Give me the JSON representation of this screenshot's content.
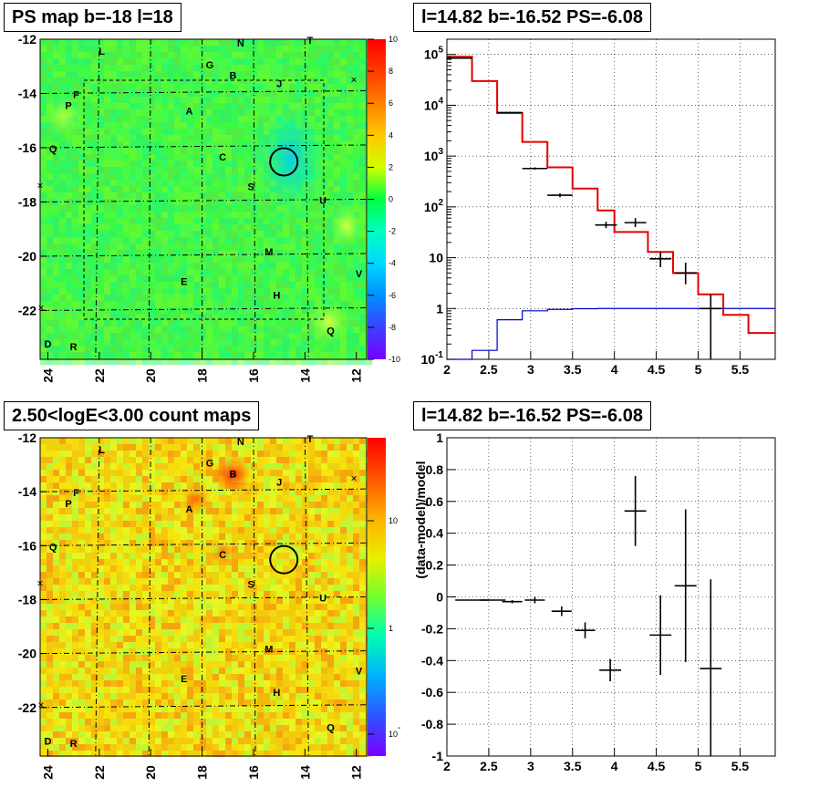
{
  "panels": {
    "top_left_title": "PS map b=-18 l=18",
    "top_right_title": "l=14.82 b=-16.52 PS=-6.08",
    "bottom_left_title": "2.50<logE<3.00 count maps",
    "bottom_right_title": "l=14.82 b=-16.52 PS=-6.08"
  },
  "chart_data": [
    {
      "type": "heatmap",
      "title": "PS map b=-18 l=18",
      "x_ticks": [
        "24",
        "22",
        "20",
        "18",
        "16",
        "14",
        "12"
      ],
      "y_ticks": [
        "-12",
        "-14",
        "-16",
        "-18",
        "-20",
        "-22"
      ],
      "xlim": [
        24.3,
        11.6
      ],
      "ylim": [
        -23.8,
        -12.0
      ],
      "colorbar": {
        "range": [
          -10,
          10
        ],
        "ticks": [
          "10",
          "8",
          "6",
          "4",
          "2",
          "0",
          "-2",
          "-4",
          "-6",
          "-8",
          "-10"
        ]
      },
      "labels": [
        {
          "text": "L",
          "l": 21.9,
          "b": -12.4
        },
        {
          "text": "N",
          "l": 16.5,
          "b": -12.1
        },
        {
          "text": "T",
          "l": 13.8,
          "b": -12.0
        },
        {
          "text": "G",
          "l": 17.7,
          "b": -12.9
        },
        {
          "text": "B",
          "l": 16.8,
          "b": -13.3
        },
        {
          "text": "J",
          "l": 15.0,
          "b": -13.6
        },
        {
          "text": "F",
          "l": 22.9,
          "b": -14.0
        },
        {
          "text": "P",
          "l": 23.2,
          "b": -14.4
        },
        {
          "text": "A",
          "l": 18.5,
          "b": -14.6
        },
        {
          "text": "Q",
          "l": 23.8,
          "b": -16.0
        },
        {
          "text": "C",
          "l": 17.2,
          "b": -16.3
        },
        {
          "text": "S",
          "l": 16.1,
          "b": -17.4
        },
        {
          "text": "U",
          "l": 13.3,
          "b": -17.9
        },
        {
          "text": "M",
          "l": 15.4,
          "b": -19.8
        },
        {
          "text": "E",
          "l": 18.7,
          "b": -20.9
        },
        {
          "text": "H",
          "l": 15.1,
          "b": -21.4
        },
        {
          "text": "V",
          "l": 11.9,
          "b": -20.6
        },
        {
          "text": "Q",
          "l": 13.0,
          "b": -22.7
        },
        {
          "text": "D",
          "l": 24.0,
          "b": -23.2
        },
        {
          "text": "R",
          "l": 23.0,
          "b": -23.3
        }
      ],
      "circle_center": {
        "l": 14.82,
        "b": -16.52
      }
    },
    {
      "type": "line",
      "title": "l=14.82 b=-16.52 PS=-6.08",
      "xlim": [
        2.0,
        5.92
      ],
      "ylim_log10": [
        -1,
        5.3
      ],
      "log_y": true,
      "grid": true,
      "x_ticks": [
        "2",
        "2.5",
        "3",
        "3.5",
        "4",
        "4.5",
        "5",
        "5.5"
      ],
      "y_ticks": [
        "10^5",
        "10^4",
        "10^3",
        "10^2",
        "10",
        "1",
        "10^-1"
      ],
      "bin_edges": [
        2.0,
        2.3,
        2.6,
        2.9,
        3.2,
        3.5,
        3.8,
        4.0,
        4.4,
        4.7,
        5.0,
        5.3,
        5.6,
        5.92
      ],
      "series": [
        {
          "color": "#e60000",
          "values": [
            90000,
            30000,
            7000,
            1900,
            600,
            230,
            85,
            32,
            13,
            5,
            1.9,
            0.75,
            0.33
          ]
        },
        {
          "color": "#0000cc",
          "values": [
            0.1,
            0.15,
            0.6,
            0.9,
            0.96,
            0.99,
            1.0,
            1.0,
            1.0,
            1.0,
            1.0,
            1.0,
            1.0
          ]
        }
      ],
      "data_points": [
        {
          "x": 2.15,
          "y": 85000,
          "xerr": 0.15,
          "lo": 84000,
          "hi": 86000
        },
        {
          "x": 2.75,
          "y": 7200,
          "xerr": 0.15,
          "lo": 7000,
          "hi": 7400
        },
        {
          "x": 3.05,
          "y": 570,
          "xerr": 0.15,
          "lo": 540,
          "hi": 600
        },
        {
          "x": 3.35,
          "y": 170,
          "xerr": 0.15,
          "lo": 155,
          "hi": 185
        },
        {
          "x": 3.9,
          "y": 44,
          "xerr": 0.13,
          "lo": 38,
          "hi": 51
        },
        {
          "x": 4.25,
          "y": 49,
          "xerr": 0.13,
          "lo": 40,
          "hi": 60
        },
        {
          "x": 4.55,
          "y": 9.5,
          "xerr": 0.13,
          "lo": 6.5,
          "hi": 13
        },
        {
          "x": 4.85,
          "y": 5,
          "xerr": 0.13,
          "lo": 3,
          "hi": 8
        },
        {
          "x": 5.15,
          "y": 1,
          "xerr": 0.13,
          "lo": 0.1,
          "hi": 1.9
        }
      ]
    },
    {
      "type": "heatmap",
      "title": "2.50<logE<3.00 count maps",
      "x_ticks": [
        "24",
        "22",
        "20",
        "18",
        "16",
        "14",
        "12"
      ],
      "y_ticks": [
        "-12",
        "-14",
        "-16",
        "-18",
        "-20",
        "-22"
      ],
      "colorbar": {
        "ticks": [
          "10",
          "1",
          "10^-1"
        ]
      },
      "labels": [
        {
          "text": "L",
          "l": 21.9,
          "b": -12.4
        },
        {
          "text": "N",
          "l": 16.5,
          "b": -12.1
        },
        {
          "text": "T",
          "l": 13.8,
          "b": -12.0
        },
        {
          "text": "G",
          "l": 17.7,
          "b": -12.9
        },
        {
          "text": "B",
          "l": 16.8,
          "b": -13.3
        },
        {
          "text": "J",
          "l": 15.0,
          "b": -13.6
        },
        {
          "text": "F",
          "l": 22.9,
          "b": -14.0
        },
        {
          "text": "P",
          "l": 23.2,
          "b": -14.4
        },
        {
          "text": "A",
          "l": 18.5,
          "b": -14.6
        },
        {
          "text": "Q",
          "l": 23.8,
          "b": -16.0
        },
        {
          "text": "C",
          "l": 17.2,
          "b": -16.3
        },
        {
          "text": "S",
          "l": 16.1,
          "b": -17.4
        },
        {
          "text": "U",
          "l": 13.3,
          "b": -17.9
        },
        {
          "text": "M",
          "l": 15.4,
          "b": -19.8
        },
        {
          "text": "E",
          "l": 18.7,
          "b": -20.9
        },
        {
          "text": "H",
          "l": 15.1,
          "b": -21.4
        },
        {
          "text": "V",
          "l": 11.9,
          "b": -20.6
        },
        {
          "text": "Q",
          "l": 13.0,
          "b": -22.7
        },
        {
          "text": "D",
          "l": 24.0,
          "b": -23.2
        },
        {
          "text": "R",
          "l": 23.0,
          "b": -23.3
        }
      ],
      "circle_center": {
        "l": 14.82,
        "b": -16.52
      }
    },
    {
      "type": "scatter",
      "title": "l=14.82 b=-16.52 PS=-6.08",
      "ylabel": "(data-model)/model",
      "xlim": [
        2.0,
        5.92
      ],
      "ylim": [
        -1,
        1
      ],
      "grid": true,
      "x_ticks": [
        "2",
        "2.5",
        "3",
        "3.5",
        "4",
        "4.5",
        "5",
        "5.5"
      ],
      "y_ticks": [
        "1",
        "0.8",
        "0.6",
        "0.4",
        "0.2",
        "0",
        "-0.2",
        "-0.4",
        "-0.6",
        "-0.8",
        "-1"
      ],
      "points": [
        {
          "x": 2.3,
          "y": -0.02,
          "xerr": 0.2,
          "yerr": 0.0
        },
        {
          "x": 2.55,
          "y": -0.02,
          "xerr": 0.15,
          "yerr": 0.0
        },
        {
          "x": 2.78,
          "y": -0.03,
          "xerr": 0.12,
          "yerr": 0.01
        },
        {
          "x": 3.05,
          "y": -0.02,
          "xerr": 0.12,
          "yerr": 0.02
        },
        {
          "x": 3.37,
          "y": -0.09,
          "xerr": 0.12,
          "yerr": 0.03
        },
        {
          "x": 3.65,
          "y": -0.21,
          "xerr": 0.12,
          "yerr": 0.05
        },
        {
          "x": 3.95,
          "y": -0.46,
          "xerr": 0.13,
          "yerr": 0.07
        },
        {
          "x": 4.25,
          "y": 0.54,
          "xerr": 0.13,
          "yerr": 0.22
        },
        {
          "x": 4.55,
          "y": -0.24,
          "xerr": 0.13,
          "yerr": 0.25
        },
        {
          "x": 4.85,
          "y": 0.07,
          "xerr": 0.13,
          "yerr": 0.48
        },
        {
          "x": 5.15,
          "y": -0.45,
          "xerr": 0.13,
          "yerr": 0.56
        }
      ]
    }
  ]
}
